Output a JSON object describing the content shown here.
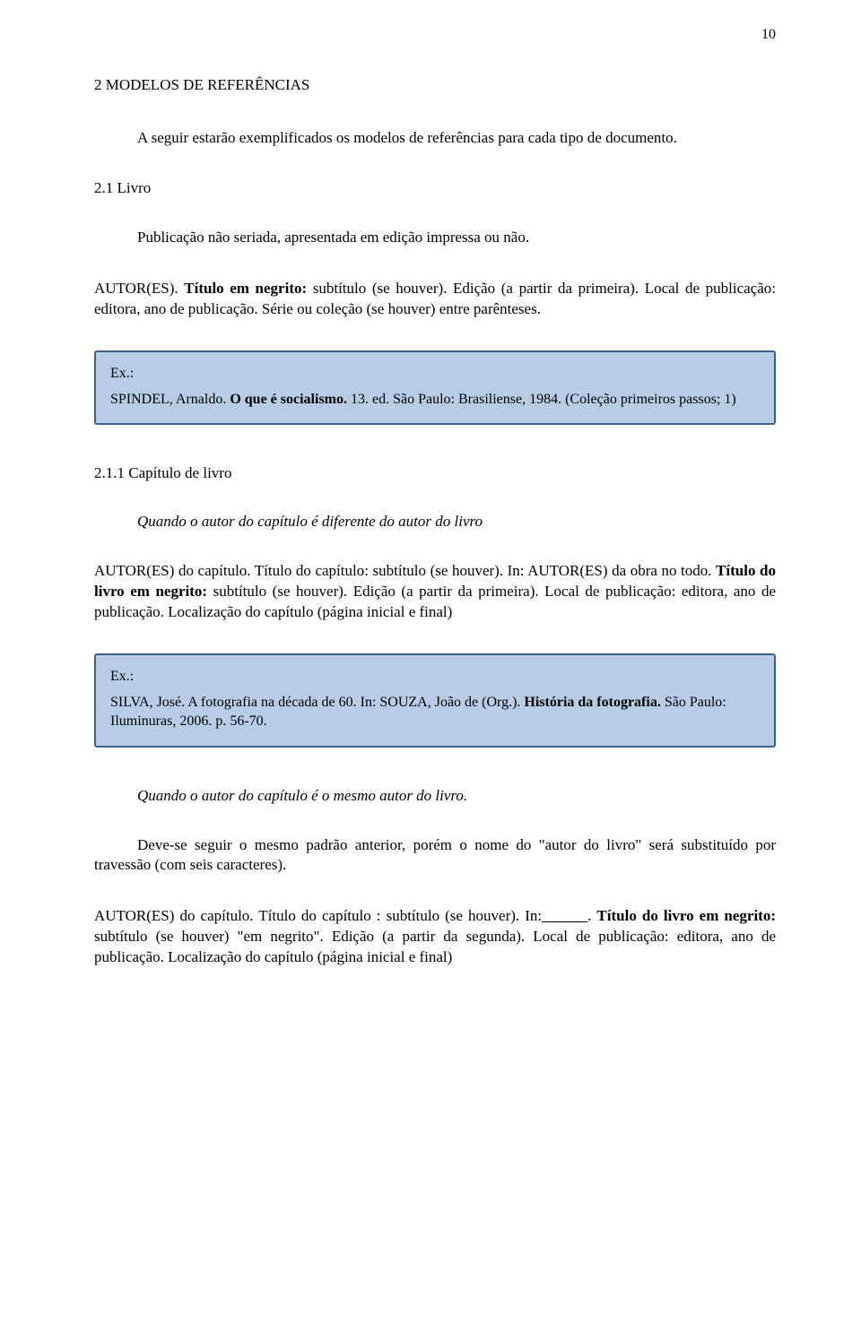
{
  "page_number": "10",
  "heading": "2 MODELOS DE REFERÊNCIAS",
  "intro": "A seguir estarão exemplificados os modelos de referências para cada tipo de documento.",
  "s1": {
    "title": "2.1 Livro",
    "desc": "Publicação não seriada, apresentada em edição impressa ou não.",
    "fmt_pre": "AUTOR(ES). ",
    "fmt_bold": "Título em negrito:",
    "fmt_post": " subtítulo (se houver). Edição (a partir da primeira). Local de publicação: editora, ano de publicação. Série ou coleção (se houver) entre parênteses.",
    "ex_label": "Ex.:",
    "ex_pre": "SPINDEL, Arnaldo. ",
    "ex_bold": "O que é socialismo.",
    "ex_post": " 13. ed. São Paulo: Brasiliense, 1984. (Coleção primeiros passos; 1)"
  },
  "s2": {
    "title": "2.1.1 Capítulo de livro",
    "note": "Quando o autor do capítulo é diferente do autor do livro",
    "fmt_pre": "AUTOR(ES) do capítulo. Título do capítulo: subtítulo (se houver). In: AUTOR(ES) da obra no todo. ",
    "fmt_bold": "Título do livro em negrito:",
    "fmt_post": " subtítulo (se houver). Edição (a partir da primeira). Local de publicação: editora, ano de publicação. Localização do capítulo (página inicial e final)",
    "ex_label": "Ex.:",
    "ex_pre": "SILVA, José. A fotografia na década de 60. In: SOUZA, João de (Org.). ",
    "ex_bold": "História da fotografia.",
    "ex_post": " São Paulo: Iluminuras, 2006. p. 56-70."
  },
  "s3": {
    "note": "Quando o autor do capítulo é o mesmo autor do livro.",
    "para": "Deve-se seguir o mesmo padrão anterior, porém o nome do \"autor do livro\" será substituído por travessão (com seis caracteres).",
    "fmt_pre": "AUTOR(ES) do capítulo. Título do capítulo : subtítulo (se houver). In:",
    "fmt_blank": "______",
    "fmt_mid": ". ",
    "fmt_bold": "Título do livro em negrito:",
    "fmt_post": " subtítulo (se houver) \"em negrito\". Edição (a partir da segunda). Local de publicação: editora, ano de publicação. Localização do capítulo (página inicial e final)"
  }
}
